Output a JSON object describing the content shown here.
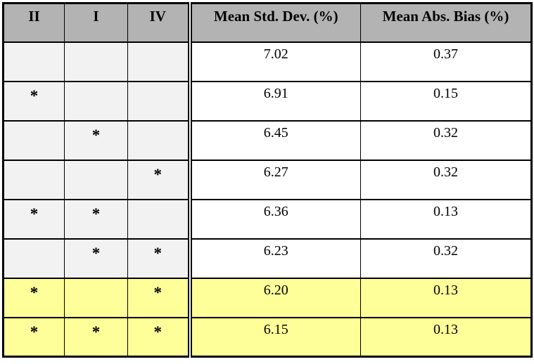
{
  "table": {
    "columns": [
      {
        "label": "II"
      },
      {
        "label": "I"
      },
      {
        "label": "IV"
      },
      {
        "label": "Mean Std. Dev. (%)"
      },
      {
        "label": "Mean Abs. Bias (%)"
      }
    ],
    "rows": [
      {
        "II": "",
        "I": "",
        "IV": "",
        "msd": "7.02",
        "mab": "0.37",
        "highlighted": false
      },
      {
        "II": "*",
        "I": "",
        "IV": "",
        "msd": "6.91",
        "mab": "0.15",
        "highlighted": false
      },
      {
        "II": "",
        "I": "*",
        "IV": "",
        "msd": "6.45",
        "mab": "0.32",
        "highlighted": false
      },
      {
        "II": "",
        "I": "",
        "IV": "*",
        "msd": "6.27",
        "mab": "0.32",
        "highlighted": false
      },
      {
        "II": "*",
        "I": "*",
        "IV": "",
        "msd": "6.36",
        "mab": "0.13",
        "highlighted": false
      },
      {
        "II": "",
        "I": "*",
        "IV": "*",
        "msd": "6.23",
        "mab": "0.32",
        "highlighted": false
      },
      {
        "II": "*",
        "I": "",
        "IV": "*",
        "msd": "6.20",
        "mab": "0.13",
        "highlighted": true
      },
      {
        "II": "*",
        "I": "*",
        "IV": "*",
        "msd": "6.15",
        "mab": "0.13",
        "highlighted": true
      }
    ],
    "colors": {
      "header_bg": "#b3b3b3",
      "star_cell_bg": "#f2f2f2",
      "value_cell_bg": "#ffffff",
      "highlight_bg": "#ffff99",
      "border": "#000000",
      "page_bg": "#ffffff"
    }
  }
}
